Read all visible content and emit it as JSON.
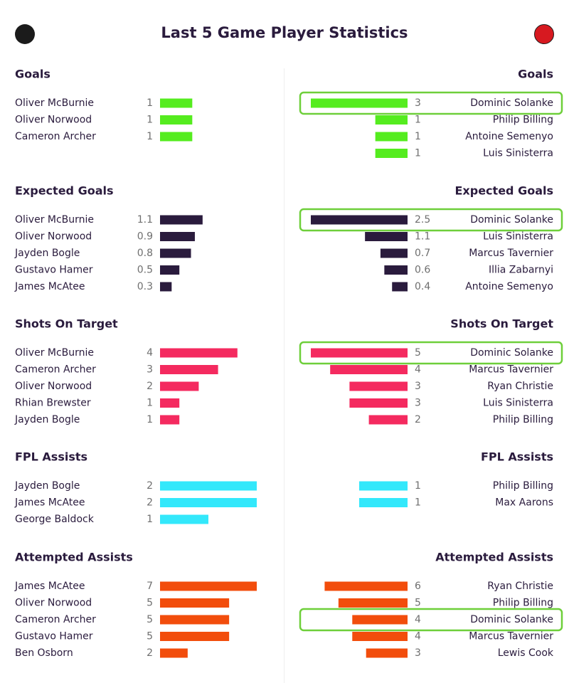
{
  "title": "Last 5 Game Player Statistics",
  "team_badges": {
    "home_icon": "sheffield-united-crest-icon",
    "away_icon": "bournemouth-crest-icon"
  },
  "chart_data": {
    "type": "bar",
    "sections": [
      {
        "title": "Goals",
        "color": "#55ec1f",
        "max": 3,
        "left": [
          {
            "name": "Oliver McBurnie",
            "value": 1
          },
          {
            "name": "Oliver Norwood",
            "value": 1
          },
          {
            "name": "Cameron Archer",
            "value": 1
          }
        ],
        "right": [
          {
            "name": "Dominic Solanke",
            "value": 3,
            "highlight": true
          },
          {
            "name": "Philip Billing",
            "value": 1
          },
          {
            "name": "Antoine Semenyo",
            "value": 1
          },
          {
            "name": "Luis Sinisterra",
            "value": 1
          }
        ]
      },
      {
        "title": "Expected Goals",
        "color": "#2a1b3d",
        "max": 2.5,
        "left": [
          {
            "name": "Oliver McBurnie",
            "value": "1.1"
          },
          {
            "name": "Oliver Norwood",
            "value": "0.9"
          },
          {
            "name": "Jayden Bogle",
            "value": "0.8"
          },
          {
            "name": "Gustavo Hamer",
            "value": "0.5"
          },
          {
            "name": "James McAtee",
            "value": "0.3"
          }
        ],
        "right": [
          {
            "name": "Dominic Solanke",
            "value": "2.5",
            "highlight": true
          },
          {
            "name": "Luis Sinisterra",
            "value": "1.1"
          },
          {
            "name": "Marcus Tavernier",
            "value": "0.7"
          },
          {
            "name": "Illia Zabarnyi",
            "value": "0.6"
          },
          {
            "name": "Antoine Semenyo",
            "value": "0.4"
          }
        ]
      },
      {
        "title": "Shots On Target",
        "color": "#f42a5f",
        "max": 5,
        "left": [
          {
            "name": "Oliver McBurnie",
            "value": 4
          },
          {
            "name": "Cameron Archer",
            "value": 3
          },
          {
            "name": "Oliver Norwood",
            "value": 2
          },
          {
            "name": "Rhian Brewster",
            "value": 1
          },
          {
            "name": "Jayden Bogle",
            "value": 1
          }
        ],
        "right": [
          {
            "name": "Dominic Solanke",
            "value": 5,
            "highlight": true
          },
          {
            "name": "Marcus Tavernier",
            "value": 4
          },
          {
            "name": "Ryan Christie",
            "value": 3
          },
          {
            "name": "Luis Sinisterra",
            "value": 3
          },
          {
            "name": "Philip Billing",
            "value": 2
          }
        ]
      },
      {
        "title": "FPL Assists",
        "color": "#33e8fb",
        "max": 2,
        "left": [
          {
            "name": "Jayden Bogle",
            "value": 2
          },
          {
            "name": "James McAtee",
            "value": 2
          },
          {
            "name": "George Baldock",
            "value": 1
          }
        ],
        "right": [
          {
            "name": "Philip Billing",
            "value": 1
          },
          {
            "name": "Max Aarons",
            "value": 1
          }
        ]
      },
      {
        "title": "Attempted Assists",
        "color": "#f24d0c",
        "max": 7,
        "left": [
          {
            "name": "James McAtee",
            "value": 7
          },
          {
            "name": "Oliver Norwood",
            "value": 5
          },
          {
            "name": "Cameron Archer",
            "value": 5
          },
          {
            "name": "Gustavo Hamer",
            "value": 5
          },
          {
            "name": "Ben Osborn",
            "value": 2
          }
        ],
        "right": [
          {
            "name": "Ryan Christie",
            "value": 6
          },
          {
            "name": "Philip Billing",
            "value": 5
          },
          {
            "name": "Dominic Solanke",
            "value": 4,
            "highlight": true
          },
          {
            "name": "Marcus Tavernier",
            "value": 4
          },
          {
            "name": "Lewis Cook",
            "value": 3
          }
        ]
      }
    ]
  }
}
